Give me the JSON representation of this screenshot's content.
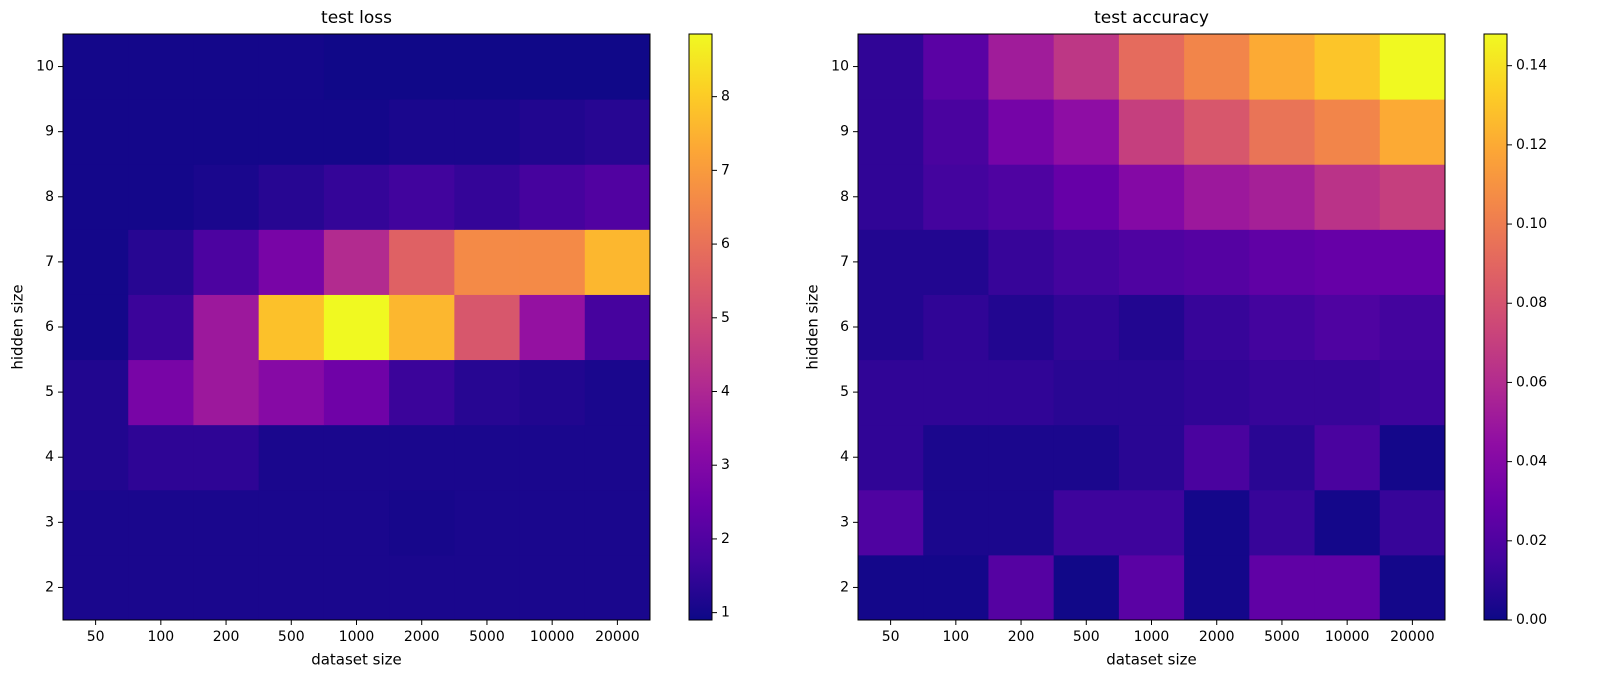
{
  "chart_data": [
    {
      "type": "heatmap",
      "title": "test loss",
      "xlabel": "dataset size",
      "ylabel": "hidden size",
      "x": [
        "50",
        "100",
        "200",
        "500",
        "1000",
        "2000",
        "5000",
        "10000",
        "20000"
      ],
      "y": [
        "2",
        "3",
        "4",
        "5",
        "6",
        "7",
        "8",
        "9",
        "10"
      ],
      "z": [
        [
          1.1,
          1.1,
          1.1,
          1.1,
          1.1,
          1.1,
          1.1,
          1.1,
          1.1
        ],
        [
          1.1,
          1.1,
          1.1,
          1.1,
          1.1,
          1.05,
          1.1,
          1.1,
          1.1
        ],
        [
          1.2,
          1.4,
          1.4,
          1.1,
          1.1,
          1.1,
          1.1,
          1.1,
          1.1
        ],
        [
          1.2,
          2.8,
          3.6,
          3.1,
          2.6,
          1.6,
          1.3,
          1.2,
          1.1
        ],
        [
          1.0,
          1.6,
          3.6,
          7.8,
          8.85,
          7.6,
          5.3,
          3.4,
          1.8
        ],
        [
          1.0,
          1.3,
          1.9,
          2.8,
          4.1,
          5.6,
          6.6,
          6.6,
          7.6
        ],
        [
          1.0,
          1.0,
          1.1,
          1.3,
          1.5,
          1.7,
          1.5,
          1.8,
          2.0
        ],
        [
          1.0,
          1.0,
          1.0,
          1.0,
          1.0,
          1.1,
          1.1,
          1.2,
          1.3
        ],
        [
          1.0,
          1.0,
          1.0,
          1.0,
          0.95,
          0.95,
          0.95,
          0.95,
          0.95
        ]
      ],
      "colormap": "plasma",
      "clim": [
        0.9,
        8.85
      ],
      "cticks": [
        1,
        2,
        3,
        4,
        5,
        6,
        7,
        8
      ]
    },
    {
      "type": "heatmap",
      "title": "test accuracy",
      "xlabel": "dataset size",
      "ylabel": "hidden size",
      "x": [
        "50",
        "100",
        "200",
        "500",
        "1000",
        "2000",
        "5000",
        "10000",
        "20000"
      ],
      "y": [
        "2",
        "3",
        "4",
        "5",
        "6",
        "7",
        "8",
        "9",
        "10"
      ],
      "z": [
        [
          0.002,
          0.002,
          0.022,
          0.001,
          0.024,
          0.002,
          0.026,
          0.026,
          0.002
        ],
        [
          0.02,
          0.004,
          0.004,
          0.014,
          0.014,
          0.002,
          0.012,
          0.002,
          0.012
        ],
        [
          0.01,
          0.004,
          0.004,
          0.004,
          0.008,
          0.018,
          0.008,
          0.018,
          0.002
        ],
        [
          0.01,
          0.01,
          0.01,
          0.008,
          0.008,
          0.01,
          0.012,
          0.012,
          0.014
        ],
        [
          0.006,
          0.01,
          0.006,
          0.01,
          0.006,
          0.012,
          0.016,
          0.02,
          0.016
        ],
        [
          0.006,
          0.006,
          0.012,
          0.016,
          0.02,
          0.022,
          0.026,
          0.028,
          0.028
        ],
        [
          0.01,
          0.016,
          0.02,
          0.028,
          0.04,
          0.05,
          0.054,
          0.064,
          0.07
        ],
        [
          0.01,
          0.018,
          0.034,
          0.044,
          0.07,
          0.082,
          0.096,
          0.104,
          0.12
        ],
        [
          0.01,
          0.024,
          0.052,
          0.066,
          0.092,
          0.104,
          0.12,
          0.13,
          0.148
        ]
      ],
      "colormap": "plasma",
      "clim": [
        0,
        0.148
      ],
      "cticks": [
        {
          "value": 0,
          "label": "0.00"
        },
        0.02,
        0.04,
        0.06,
        0.08,
        {
          "value": 0.1,
          "label": "0.10"
        },
        0.12,
        0.14
      ]
    }
  ]
}
